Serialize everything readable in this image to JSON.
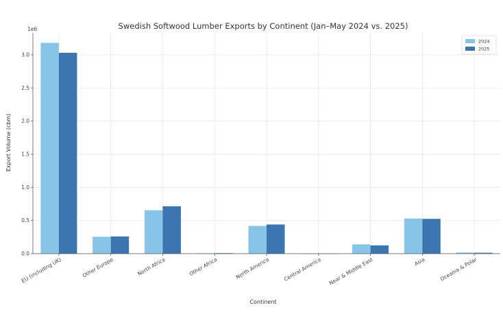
{
  "chart_data": {
    "type": "bar",
    "title": "Swedish Softwood Lumber Exports by Continent (Jan–May 2024 vs. 2025)",
    "xlabel": "Continent",
    "ylabel": "Export Volume (cbm)",
    "y_offset_label": "1e6",
    "categories": [
      "EU (including UK)",
      "Other Europe",
      "North Africa",
      "Other Africa",
      "North America",
      "Central America",
      "Near & Middle East",
      "Asia",
      "Oceania & Polar"
    ],
    "series": [
      {
        "name": "2024",
        "color": "#87c5e8",
        "values": [
          3180000,
          255000,
          655000,
          6000,
          420000,
          2000,
          140000,
          530000,
          18000
        ]
      },
      {
        "name": "2025",
        "color": "#3c76b0",
        "values": [
          3030000,
          260000,
          715000,
          8000,
          440000,
          2000,
          125000,
          525000,
          14000
        ]
      }
    ],
    "ylim": [
      0,
      3330000
    ],
    "yticks": [
      0,
      500000,
      1000000,
      1500000,
      2000000,
      2500000,
      3000000
    ],
    "ytick_labels": [
      "0.0",
      "0.5",
      "1.0",
      "1.5",
      "2.0",
      "2.5",
      "3.0"
    ],
    "grid": true,
    "legend_position": "top-right"
  }
}
